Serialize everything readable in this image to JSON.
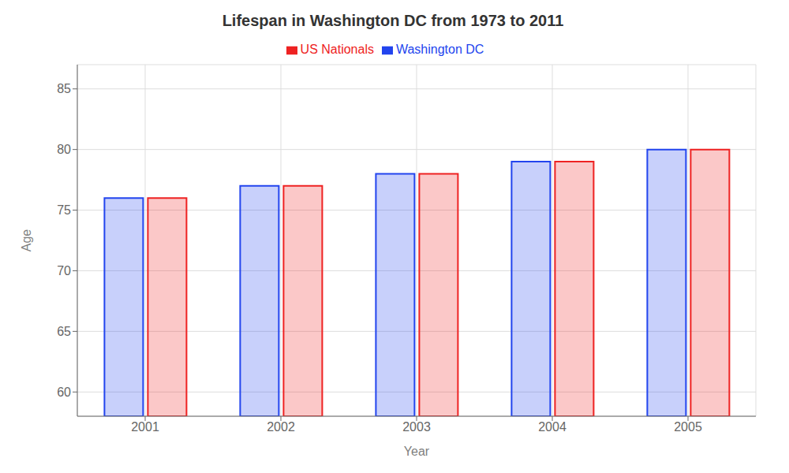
{
  "chart_data": {
    "type": "bar",
    "title": "Lifespan in Washington DC from 1973 to 2011",
    "xlabel": "Year",
    "ylabel": "Age",
    "categories": [
      2001,
      2002,
      2003,
      2004,
      2005
    ],
    "series": [
      {
        "name": "Washington DC",
        "color": "#2244ee",
        "values": [
          76,
          77,
          78,
          79,
          80
        ]
      },
      {
        "name": "US Nationals",
        "color": "#ee2222",
        "values": [
          76,
          77,
          78,
          79,
          80
        ]
      }
    ],
    "ylim": [
      58,
      87
    ],
    "yticks": [
      60,
      65,
      70,
      75,
      80,
      85
    ],
    "grid": true,
    "legend": "top"
  }
}
